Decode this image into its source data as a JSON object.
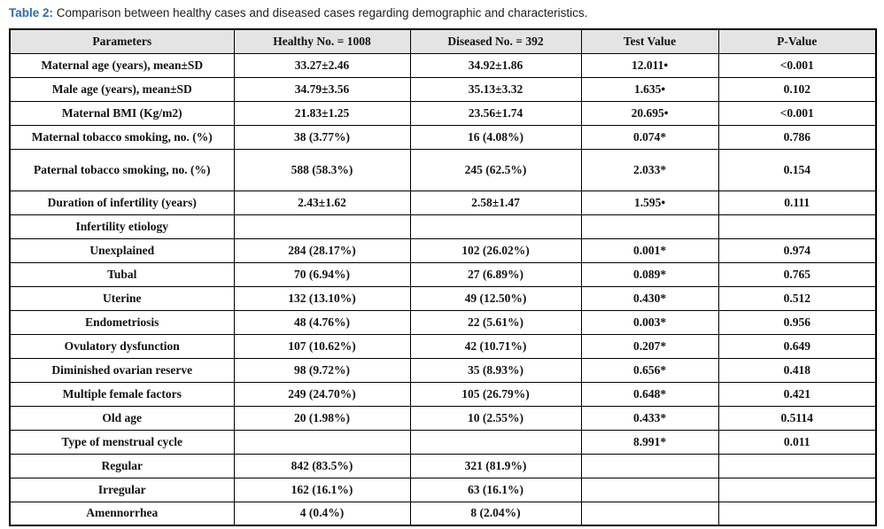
{
  "caption": {
    "label": "Table 2:",
    "text": "Comparison between healthy cases and diseased cases regarding demographic and characteristics."
  },
  "colors": {
    "caption_label_blue": "#2b6cb8",
    "header_background": "#e4e4e4",
    "border_black": "#000000"
  },
  "table": {
    "columns": [
      "Parameters",
      "Healthy No. = 1008",
      "Diseased No. = 392",
      "Test Value",
      "P-Value"
    ],
    "rows": [
      [
        "Maternal age (years), mean±SD",
        "33.27±2.46",
        "34.92±1.86",
        "12.011•",
        "<0.001"
      ],
      [
        "Male age (years), mean±SD",
        "34.79±3.56",
        "35.13±3.32",
        "1.635•",
        "0.102"
      ],
      [
        "Maternal BMI (Kg/m2)",
        "21.83±1.25",
        "23.56±1.74",
        "20.695•",
        "<0.001"
      ],
      [
        "Maternal tobacco smoking, no. (%)",
        "38 (3.77%)",
        "16 (4.08%)",
        "0.074*",
        "0.786"
      ],
      [
        "Paternal tobacco smoking, no. (%)",
        "588 (58.3%)",
        "245 (62.5%)",
        "2.033*",
        "0.154"
      ],
      [
        "Duration of infertility (years)",
        "2.43±1.62",
        "2.58±1.47",
        "1.595•",
        "0.111"
      ],
      [
        "Infertility etiology",
        "",
        "",
        "",
        ""
      ],
      [
        "Unexplained",
        "284 (28.17%)",
        "102 (26.02%)",
        "0.001*",
        "0.974"
      ],
      [
        "Tubal",
        "70 (6.94%)",
        "27 (6.89%)",
        "0.089*",
        "0.765"
      ],
      [
        "Uterine",
        "132 (13.10%)",
        "49 (12.50%)",
        "0.430*",
        "0.512"
      ],
      [
        "Endometriosis",
        "48 (4.76%)",
        "22 (5.61%)",
        "0.003*",
        "0.956"
      ],
      [
        "Ovulatory dysfunction",
        "107 (10.62%)",
        "42 (10.71%)",
        "0.207*",
        "0.649"
      ],
      [
        "Diminished ovarian reserve",
        "98 (9.72%)",
        "35 (8.93%)",
        "0.656*",
        "0.418"
      ],
      [
        "Multiple female factors",
        "249 (24.70%)",
        "105 (26.79%)",
        "0.648*",
        "0.421"
      ],
      [
        "Old age",
        "20 (1.98%)",
        "10 (2.55%)",
        "0.433*",
        "0.5114"
      ],
      [
        "Type of menstrual cycle",
        "",
        "",
        "8.991*",
        "0.011"
      ],
      [
        "Regular",
        "842 (83.5%)",
        "321 (81.9%)",
        "",
        ""
      ],
      [
        "Irregular",
        "162 (16.1%)",
        "63 (16.1%)",
        "",
        ""
      ],
      [
        "Amennorrhea",
        "4 (0.4%)",
        "8 (2.04%)",
        "",
        ""
      ]
    ]
  }
}
